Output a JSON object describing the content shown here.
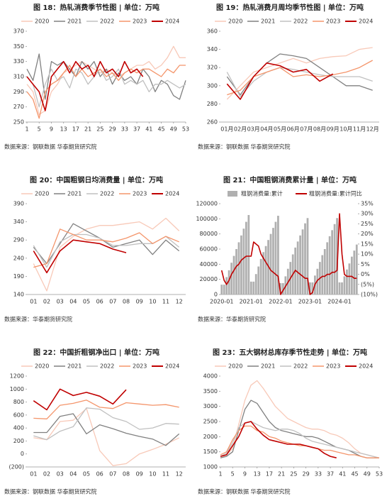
{
  "chart_data": [
    {
      "type": "line",
      "title": "图 18：热轧消费季节性图 | 单位：万吨",
      "source": "数据来源：钢联数据  华泰期货研究院",
      "x": [
        1,
        3,
        5,
        7,
        9,
        11,
        13,
        15,
        17,
        19,
        21,
        23,
        25,
        27,
        29,
        31,
        33,
        35,
        37,
        39,
        41,
        43,
        45,
        47,
        49,
        51,
        53
      ],
      "xlim": [
        1,
        53
      ],
      "xticks": [
        1,
        5,
        9,
        13,
        17,
        21,
        25,
        29,
        33,
        37,
        41,
        45,
        49,
        53
      ],
      "ylim": [
        250,
        370
      ],
      "yticks": [
        250,
        270,
        290,
        310,
        330,
        350,
        370
      ],
      "series": [
        {
          "name": "2020",
          "color": "#f8c9b8",
          "values": [
            300,
            290,
            260,
            265,
            290,
            300,
            315,
            320,
            325,
            330,
            325,
            320,
            315,
            320,
            315,
            310,
            315,
            320,
            325,
            325,
            330,
            320,
            325,
            335,
            350,
            335,
            335
          ]
        },
        {
          "name": "2021",
          "color": "#808080",
          "values": [
            320,
            305,
            340,
            280,
            330,
            325,
            330,
            320,
            310,
            330,
            320,
            330,
            310,
            320,
            300,
            315,
            305,
            310,
            300,
            320,
            310,
            290,
            305,
            300,
            285,
            280,
            305
          ]
        },
        {
          "name": "2022",
          "color": "#c0c0c0",
          "values": [
            310,
            300,
            270,
            300,
            320,
            305,
            310,
            295,
            320,
            315,
            300,
            310,
            320,
            305,
            310,
            320,
            300,
            305,
            300,
            305,
            290,
            300,
            300,
            305,
            300,
            295,
            300
          ]
        },
        {
          "name": "2023",
          "color": "#f4956b",
          "values": [
            290,
            280,
            255,
            290,
            300,
            305,
            315,
            325,
            310,
            320,
            310,
            315,
            320,
            310,
            315,
            305,
            315,
            320,
            315,
            320,
            320,
            315,
            310,
            320,
            315,
            325,
            325
          ]
        },
        {
          "name": "2024",
          "color": "#c00000",
          "values": [
            310,
            300,
            290,
            265,
            310,
            320,
            330,
            315,
            330,
            320,
            325,
            310,
            330,
            315,
            320,
            310,
            330,
            315,
            320,
            310,
            null,
            null,
            null,
            null,
            null,
            null,
            null
          ]
        }
      ]
    },
    {
      "type": "line",
      "title": "图 19：热轧消费月周均季节性图 | 单位：万吨",
      "source": "数据来源：钢联数据  华泰期货研究院",
      "categories": [
        "01月",
        "02月",
        "03月",
        "04月",
        "05月",
        "06月",
        "07月",
        "08月",
        "09月",
        "10月",
        "11月",
        "12月"
      ],
      "ylim": [
        260,
        360
      ],
      "yticks": [
        260,
        280,
        300,
        320,
        340,
        360
      ],
      "series": [
        {
          "name": "2020",
          "color": "#f8c9b8",
          "values": [
            285,
            300,
            315,
            320,
            325,
            330,
            325,
            330,
            332,
            333,
            340,
            342
          ]
        },
        {
          "name": "2021",
          "color": "#808080",
          "values": [
            310,
            290,
            310,
            325,
            335,
            333,
            330,
            320,
            310,
            300,
            300,
            295
          ]
        },
        {
          "name": "2022",
          "color": "#c0c0c0",
          "values": [
            315,
            288,
            305,
            315,
            320,
            318,
            315,
            312,
            310,
            310,
            310,
            305
          ]
        },
        {
          "name": "2023",
          "color": "#f4956b",
          "values": [
            290,
            295,
            310,
            315,
            320,
            310,
            312,
            310,
            312,
            315,
            320,
            328
          ]
        },
        {
          "name": "2024",
          "color": "#c00000",
          "values": [
            302,
            285,
            310,
            325,
            322,
            315,
            318,
            305,
            313,
            null,
            null,
            null
          ]
        }
      ]
    },
    {
      "type": "line",
      "title": "图 20：中国粗钢日均消费量 | 单位：万吨",
      "source": "数据来源：华泰期货研究院",
      "categories": [
        "01",
        "02",
        "03",
        "04",
        "05",
        "06",
        "07",
        "08",
        "09",
        "10",
        "11",
        "12"
      ],
      "ylim": [
        140,
        390
      ],
      "yticks": [
        140,
        190,
        240,
        290,
        340,
        390
      ],
      "series": [
        {
          "name": "2020",
          "color": "#f8c9b8",
          "values": [
            225,
            150,
            270,
            300,
            320,
            330,
            330,
            335,
            340,
            320,
            350,
            315
          ]
        },
        {
          "name": "2021",
          "color": "#808080",
          "values": [
            270,
            225,
            280,
            335,
            315,
            295,
            270,
            280,
            290,
            250,
            290,
            260
          ]
        },
        {
          "name": "2022",
          "color": "#c0c0c0",
          "values": [
            275,
            215,
            285,
            305,
            305,
            295,
            275,
            275,
            280,
            280,
            300,
            270
          ]
        },
        {
          "name": "2023",
          "color": "#f4956b",
          "values": [
            215,
            225,
            320,
            305,
            290,
            290,
            285,
            295,
            310,
            280,
            300,
            285
          ]
        },
        {
          "name": "2024",
          "color": "#c00000",
          "values": [
            260,
            200,
            260,
            290,
            285,
            280,
            265,
            255,
            null,
            null,
            null,
            null
          ]
        }
      ]
    },
    {
      "type": "combo",
      "title": "图 21：中国粗钢消费累计量 | 单位：万吨",
      "source": "数据来源：华泰期货研究院",
      "categories": [
        "2020-01",
        null,
        null,
        null,
        null,
        null,
        null,
        null,
        null,
        null,
        null,
        null,
        "2021-01",
        null,
        null,
        null,
        null,
        null,
        null,
        null,
        null,
        null,
        null,
        null,
        "2022-01",
        null,
        null,
        null,
        null,
        null,
        null,
        null,
        null,
        null,
        null,
        null,
        "2023-01",
        null,
        null,
        null,
        null,
        null,
        null,
        null,
        null,
        null,
        null,
        null,
        "2024-01",
        null,
        null,
        null,
        null,
        null,
        null,
        null
      ],
      "ylim": [
        0,
        120000
      ],
      "yticks": [
        0,
        20000,
        40000,
        60000,
        80000,
        100000,
        120000
      ],
      "y2lim": [
        -10,
        35
      ],
      "y2ticks": [
        {
          "value": -10,
          "label": "(10%)"
        },
        {
          "value": -5,
          "label": "(5%)"
        },
        {
          "value": 0,
          "label": "0%"
        },
        {
          "value": 5,
          "label": "5%"
        },
        {
          "value": 10,
          "label": "10%"
        },
        {
          "value": 15,
          "label": "15%"
        },
        {
          "value": 20,
          "label": "20%"
        },
        {
          "value": 25,
          "label": "25%"
        },
        {
          "value": 30,
          "label": "30%"
        },
        {
          "value": 35,
          "label": "35%"
        }
      ],
      "series": [
        {
          "name": "粗钢消费量:累计",
          "type": "bar",
          "color": "#b0b0b0",
          "values": [
            13000,
            13000,
            23000,
            32000,
            42000,
            51000,
            60000,
            69000,
            78000,
            87000,
            96000,
            105000,
            17000,
            17000,
            27000,
            37000,
            47000,
            56000,
            64000,
            72000,
            80000,
            88000,
            96000,
            104000,
            15000,
            15000,
            24000,
            34000,
            43000,
            53000,
            62000,
            70000,
            78000,
            86000,
            94000,
            101000,
            16000,
            16000,
            25000,
            34000,
            43000,
            52000,
            60000,
            69000,
            77000,
            85000,
            93000,
            101000,
            16000,
            16000,
            24000,
            33000,
            41000,
            50000,
            58000,
            66000
          ]
        },
        {
          "name": "粗钢消费量:累计同比",
          "type": "line",
          "axis": "y2",
          "color": "#c00000",
          "values": [
            2,
            -3,
            -5,
            -3,
            0,
            2,
            4,
            5,
            7,
            8,
            9,
            9,
            9,
            16,
            15,
            14,
            10,
            8,
            6,
            4,
            2,
            1,
            0,
            -1,
            -10,
            -8,
            -6,
            -4,
            -2,
            0,
            2,
            1,
            0,
            -1,
            -2,
            -2,
            -10,
            -9,
            -5,
            -3,
            -2,
            -1,
            -1,
            0,
            0,
            1,
            1,
            2,
            30,
            10,
            0,
            -1,
            -1,
            -1,
            -2,
            -2
          ]
        }
      ]
    },
    {
      "type": "line",
      "title": "图 22：中国折粗钢净出口 | 单位：万吨",
      "source": "数据来源：钢联数据  华泰期货研究院",
      "categories": [
        "01",
        "02",
        "03",
        "04",
        "05",
        "06",
        "07",
        "08",
        "09",
        "10",
        "11",
        "12"
      ],
      "ylim": [
        -200,
        1200
      ],
      "yticks": [
        {
          "value": -200,
          "label": "(200)"
        },
        0,
        200,
        400,
        600,
        800,
        1000,
        1200
      ],
      "series": [
        {
          "name": "2020",
          "color": "#f8c9b8",
          "values": [
            250,
            220,
            500,
            520,
            700,
            50,
            -180,
            -150,
            0,
            70,
            150,
            250
          ]
        },
        {
          "name": "2021",
          "color": "#808080",
          "values": [
            330,
            330,
            580,
            620,
            310,
            450,
            390,
            320,
            270,
            230,
            130,
            310
          ]
        },
        {
          "name": "2022",
          "color": "#c0c0c0",
          "values": [
            280,
            220,
            350,
            420,
            710,
            690,
            560,
            500,
            380,
            400,
            470,
            460
          ]
        },
        {
          "name": "2023",
          "color": "#f4956b",
          "values": [
            550,
            540,
            750,
            780,
            830,
            720,
            700,
            790,
            770,
            750,
            760,
            720
          ]
        },
        {
          "name": "2024",
          "color": "#c00000",
          "values": [
            820,
            680,
            1000,
            900,
            950,
            890,
            770,
            990,
            null,
            null,
            null,
            null
          ]
        }
      ]
    },
    {
      "type": "line",
      "title": "图 23：五大钢材总库存季节性走势 | 单位：万吨",
      "source": "数据来源：钢联数据  华泰期货研究院",
      "x": [
        1,
        3,
        5,
        7,
        9,
        11,
        13,
        15,
        17,
        19,
        21,
        23,
        25,
        27,
        29,
        31,
        33,
        35,
        37,
        39,
        41,
        43,
        45,
        47,
        49,
        51,
        53
      ],
      "xlim": [
        1,
        53
      ],
      "xticks": [
        1,
        5,
        9,
        13,
        17,
        21,
        25,
        29,
        33,
        37,
        41,
        45,
        49,
        53
      ],
      "ylim": [
        1000,
        4000
      ],
      "yticks": [
        1000,
        1500,
        2000,
        2500,
        3000,
        3500,
        4000
      ],
      "series": [
        {
          "name": "2020",
          "color": "#f8c9b8",
          "values": [
            1300,
            1400,
            1600,
            2400,
            3200,
            3700,
            3850,
            3600,
            3300,
            3000,
            2800,
            2600,
            2500,
            2400,
            2300,
            2250,
            2250,
            2200,
            2100,
            2050,
            1950,
            1800,
            1600,
            1450,
            1400,
            1350,
            1300
          ]
        },
        {
          "name": "2021",
          "color": "#808080",
          "values": [
            1300,
            1350,
            1500,
            2200,
            2900,
            3200,
            3100,
            2800,
            2500,
            2300,
            2200,
            2150,
            2100,
            2050,
            2000,
            2000,
            1950,
            1850,
            1750,
            1650,
            1600,
            1550,
            1450,
            1350,
            1300,
            1300,
            1300
          ]
        },
        {
          "name": "2022",
          "color": "#c0c0c0",
          "values": [
            1350,
            1450,
            1800,
            2300,
            2450,
            2500,
            2400,
            2300,
            2250,
            2200,
            2250,
            2250,
            2200,
            2100,
            1950,
            1850,
            1800,
            1750,
            1700,
            1650,
            1600,
            1550,
            1500,
            1450,
            1400,
            1350,
            1300
          ]
        },
        {
          "name": "2023",
          "color": "#f4956b",
          "values": [
            1400,
            1500,
            1900,
            2200,
            2350,
            2350,
            2200,
            2150,
            2000,
            1950,
            1850,
            1800,
            1750,
            1700,
            1700,
            1650,
            1600,
            1550,
            1550,
            1500,
            1450,
            1400,
            1400,
            1350,
            1300,
            1300,
            1300
          ]
        },
        {
          "name": "2024",
          "color": "#c00000",
          "values": [
            1350,
            1400,
            1700,
            2000,
            2450,
            2500,
            2250,
            2050,
            1900,
            1850,
            1800,
            1750,
            1750,
            1750,
            1700,
            1650,
            1600,
            1450,
            1350,
            1300,
            null,
            null,
            null,
            null,
            null,
            null,
            null
          ]
        }
      ]
    }
  ]
}
